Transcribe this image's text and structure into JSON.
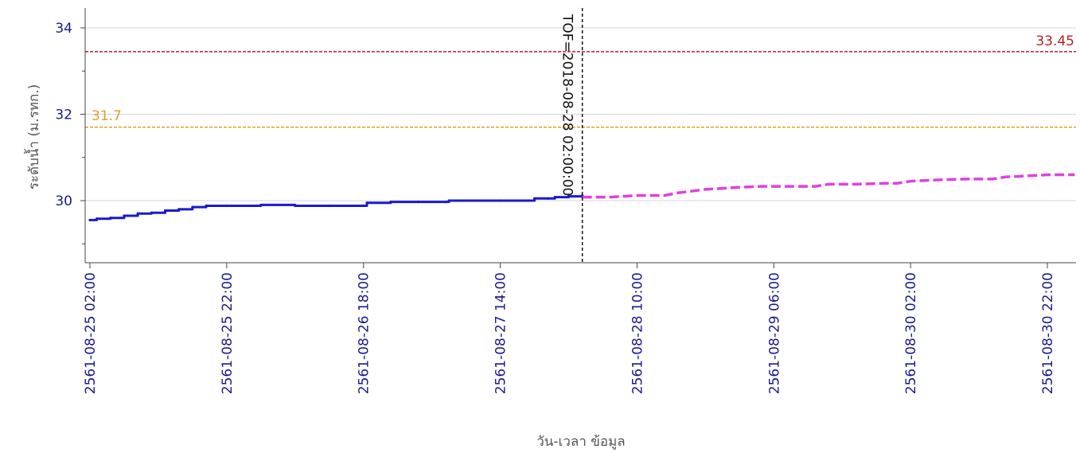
{
  "chart_data": {
    "type": "line",
    "xlabel": "วัน-เวลา ข้อมูล",
    "ylabel": "ระดับน้ำ (ม.รทก.)",
    "xlim": [
      0,
      140
    ],
    "ylim": [
      28.5,
      34.5
    ],
    "y_ticks": [
      30,
      32,
      34
    ],
    "x_ticks": [
      {
        "pos": 0,
        "label": "2561-08-25 02:00"
      },
      {
        "pos": 20,
        "label": "2561-08-25 22:00"
      },
      {
        "pos": 40,
        "label": "2561-08-26 18:00"
      },
      {
        "pos": 60,
        "label": "2561-08-27 14:00"
      },
      {
        "pos": 80,
        "label": "2561-08-28 10:00"
      },
      {
        "pos": 100,
        "label": "2561-08-29 06:00"
      },
      {
        "pos": 120,
        "label": "2561-08-30 02:00"
      },
      {
        "pos": 140,
        "label": "2561-08-30 22:00"
      }
    ],
    "grid": true,
    "reference_lines": [
      {
        "value": 33.45,
        "label": "33.45",
        "color": "#b22222"
      },
      {
        "value": 31.7,
        "label": "31.7",
        "color": "#e0a020"
      }
    ],
    "tof_marker": {
      "pos": 72,
      "label": "TOF=2018-08-28 02:00:00"
    },
    "series": [
      {
        "style": "observed",
        "color": "#1a1ad0",
        "points": [
          [
            0,
            29.55
          ],
          [
            1,
            29.58
          ],
          [
            3,
            29.6
          ],
          [
            5,
            29.65
          ],
          [
            7,
            29.7
          ],
          [
            9,
            29.72
          ],
          [
            11,
            29.77
          ],
          [
            13,
            29.8
          ],
          [
            15,
            29.85
          ],
          [
            17,
            29.88
          ],
          [
            20,
            29.88
          ],
          [
            25,
            29.9
          ],
          [
            30,
            29.88
          ],
          [
            35,
            29.88
          ],
          [
            40,
            29.88
          ],
          [
            40.5,
            29.95
          ],
          [
            44,
            29.97
          ],
          [
            48,
            29.97
          ],
          [
            52,
            29.97
          ],
          [
            52.5,
            30.0
          ],
          [
            56,
            30.0
          ],
          [
            60,
            30.0
          ],
          [
            64,
            30.0
          ],
          [
            65,
            30.05
          ],
          [
            67,
            30.05
          ],
          [
            68,
            30.08
          ],
          [
            70,
            30.1
          ],
          [
            72,
            30.12
          ]
        ]
      },
      {
        "style": "forecast",
        "color": "#e040e0",
        "points": [
          [
            72,
            30.08
          ],
          [
            76,
            30.08
          ],
          [
            80,
            30.12
          ],
          [
            84,
            30.12
          ],
          [
            86,
            30.18
          ],
          [
            88,
            30.22
          ],
          [
            90,
            30.26
          ],
          [
            94,
            30.3
          ],
          [
            98,
            30.33
          ],
          [
            102,
            30.33
          ],
          [
            106,
            30.33
          ],
          [
            108,
            30.38
          ],
          [
            112,
            30.38
          ],
          [
            116,
            30.4
          ],
          [
            118,
            30.4
          ],
          [
            120,
            30.45
          ],
          [
            124,
            30.48
          ],
          [
            128,
            30.5
          ],
          [
            130,
            30.5
          ],
          [
            132,
            30.5
          ],
          [
            134,
            30.55
          ],
          [
            138,
            30.58
          ],
          [
            140,
            30.6
          ],
          [
            144,
            30.6
          ]
        ]
      }
    ]
  }
}
